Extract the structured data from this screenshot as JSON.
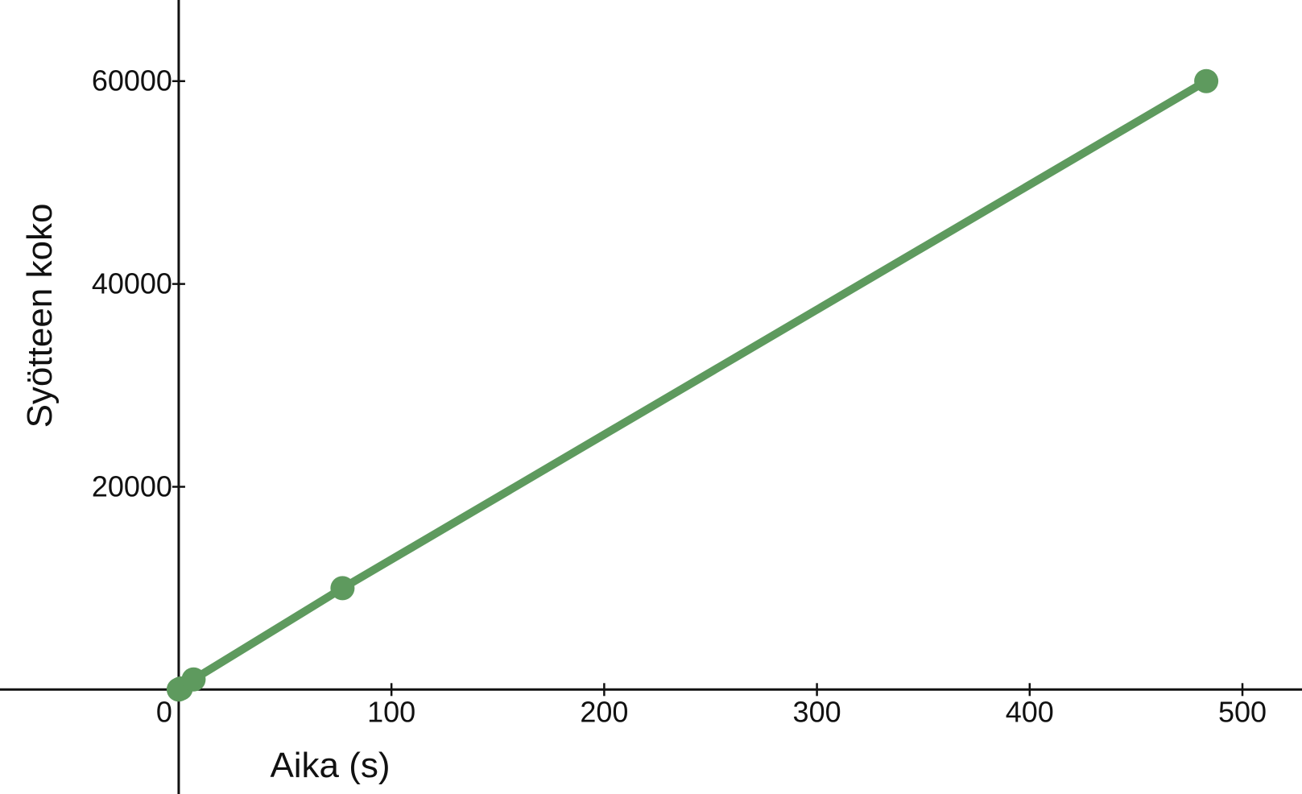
{
  "chart_data": {
    "type": "line",
    "xlabel": "Aika (s)",
    "ylabel": "Syötteen koko",
    "xlim": [
      -84,
      528
    ],
    "ylim": [
      -10300,
      68000
    ],
    "x_ticks": [
      0,
      100,
      200,
      300,
      400,
      500
    ],
    "y_ticks": [
      20000,
      40000,
      60000
    ],
    "x_tick_labels": [
      "0",
      "100",
      "200",
      "300",
      "400",
      "500"
    ],
    "y_tick_labels": [
      "20000",
      "40000",
      "60000"
    ],
    "grid": false,
    "series": [
      {
        "color": "#5e9a5e",
        "points": [
          {
            "x": 0,
            "y": 0
          },
          {
            "x": 1,
            "y": 100
          },
          {
            "x": 7,
            "y": 1000
          },
          {
            "x": 77,
            "y": 10000
          },
          {
            "x": 483,
            "y": 60000
          }
        ]
      }
    ]
  }
}
